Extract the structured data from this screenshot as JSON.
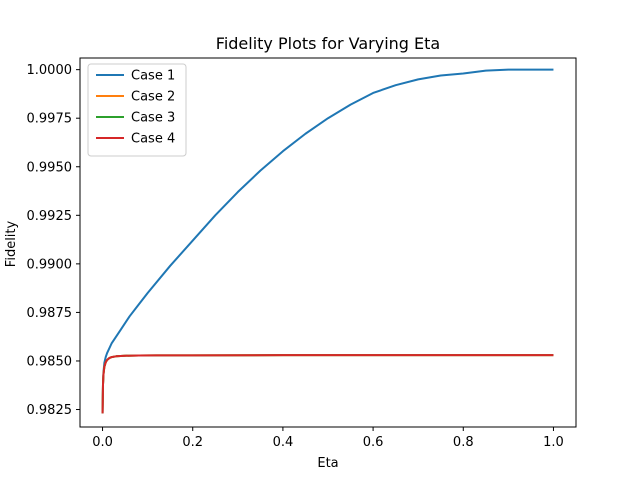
{
  "chart_data": {
    "type": "line",
    "title": "Fidelity Plots for Varying Eta",
    "xlabel": "Eta",
    "ylabel": "Fidelity",
    "xlim": [
      -0.05,
      1.05
    ],
    "ylim": [
      0.9816,
      1.0006
    ],
    "x_ticks": [
      0.0,
      0.2,
      0.4,
      0.6,
      0.8,
      1.0
    ],
    "x_tick_labels": [
      "0.0",
      "0.2",
      "0.4",
      "0.6",
      "0.8",
      "1.0"
    ],
    "y_ticks": [
      0.9825,
      0.985,
      0.9875,
      0.99,
      0.9925,
      0.995,
      0.9975,
      1.0
    ],
    "y_tick_labels": [
      "0.9825",
      "0.9850",
      "0.9875",
      "0.9900",
      "0.9925",
      "0.9950",
      "0.9975",
      "1.0000"
    ],
    "grid": false,
    "legend_position": "top-left",
    "series": [
      {
        "name": "Case 1",
        "color": "#1f77b4",
        "x": [
          0.0,
          0.001,
          0.002,
          0.004,
          0.007,
          0.01,
          0.02,
          0.04,
          0.06,
          0.08,
          0.1,
          0.15,
          0.2,
          0.25,
          0.3,
          0.35,
          0.4,
          0.45,
          0.5,
          0.55,
          0.6,
          0.65,
          0.7,
          0.75,
          0.8,
          0.85,
          0.9,
          0.95,
          1.0
        ],
        "y": [
          0.9823,
          0.9838,
          0.9844,
          0.9849,
          0.9852,
          0.9854,
          0.9859,
          0.9866,
          0.9873,
          0.9879,
          0.9885,
          0.9899,
          0.9912,
          0.9925,
          0.9937,
          0.9948,
          0.9958,
          0.9967,
          0.9975,
          0.9982,
          0.9988,
          0.9992,
          0.9995,
          0.9997,
          0.9998,
          0.99995,
          1.0,
          1.0,
          1.0
        ]
      },
      {
        "name": "Case 2",
        "color": "#ff7f0e",
        "x": [
          0.0,
          0.001,
          0.002,
          0.004,
          0.007,
          0.01,
          0.015,
          0.02,
          0.03,
          0.05,
          0.08,
          0.12,
          0.2,
          0.4,
          0.6,
          0.8,
          1.0
        ],
        "y": [
          0.9823,
          0.9838,
          0.9843,
          0.9847,
          0.98493,
          0.98505,
          0.98515,
          0.9852,
          0.98524,
          0.98527,
          0.98528,
          0.98529,
          0.98529,
          0.9853,
          0.9853,
          0.9853,
          0.9853
        ]
      },
      {
        "name": "Case 3",
        "color": "#2ca02c",
        "x": [
          0.0,
          0.001,
          0.002,
          0.004,
          0.007,
          0.01,
          0.015,
          0.02,
          0.03,
          0.05,
          0.08,
          0.12,
          0.2,
          0.4,
          0.6,
          0.8,
          1.0
        ],
        "y": [
          0.9823,
          0.9838,
          0.9843,
          0.9847,
          0.98493,
          0.98505,
          0.98515,
          0.9852,
          0.98524,
          0.98527,
          0.98528,
          0.98529,
          0.98529,
          0.9853,
          0.9853,
          0.9853,
          0.9853
        ]
      },
      {
        "name": "Case 4",
        "color": "#d62728",
        "x": [
          0.0,
          0.001,
          0.002,
          0.004,
          0.007,
          0.01,
          0.015,
          0.02,
          0.03,
          0.05,
          0.08,
          0.12,
          0.2,
          0.4,
          0.6,
          0.8,
          1.0
        ],
        "y": [
          0.9823,
          0.9838,
          0.9843,
          0.9847,
          0.98493,
          0.98505,
          0.98515,
          0.9852,
          0.98524,
          0.98527,
          0.98528,
          0.98529,
          0.98529,
          0.9853,
          0.9853,
          0.9853,
          0.9853
        ]
      }
    ]
  }
}
